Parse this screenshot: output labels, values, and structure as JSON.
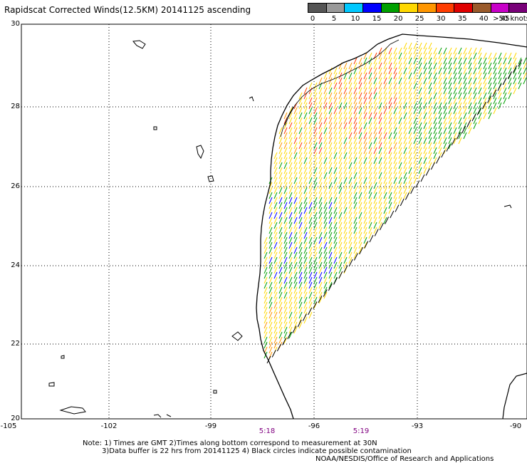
{
  "title": "Rapidscat Corrected Winds(12.5KM) 20141125 ascending",
  "legend": {
    "colors": [
      "#555555",
      "#999999",
      "#00c8ff",
      "#0000ff",
      "#00a000",
      "#ffd800",
      "#ff9600",
      "#ff3c00",
      "#e00000",
      "#9a5a2a",
      "#c800c8",
      "#780078"
    ],
    "labels": [
      "0",
      "5",
      "10",
      "15",
      "20",
      "25",
      "30",
      "35",
      "40",
      "45",
      ">50 knots"
    ]
  },
  "axes": {
    "lat_labels": [
      "30",
      "28",
      "26",
      "24",
      "22",
      "20"
    ],
    "lon_labels": [
      "-105",
      "-102",
      "-99",
      "-96",
      "-93",
      "-90"
    ]
  },
  "times": [
    "5:18",
    "5:19"
  ],
  "notes": {
    "line1": "Note: 1) Times are GMT 2)Times along bottom correspond to measurement at 30N",
    "line2": "3)Data buffer is 22 hrs from 20141125 4) Black circles indicate possible contamination",
    "line3": "NOAA/NESDIS/Office of Research and Applications"
  }
}
